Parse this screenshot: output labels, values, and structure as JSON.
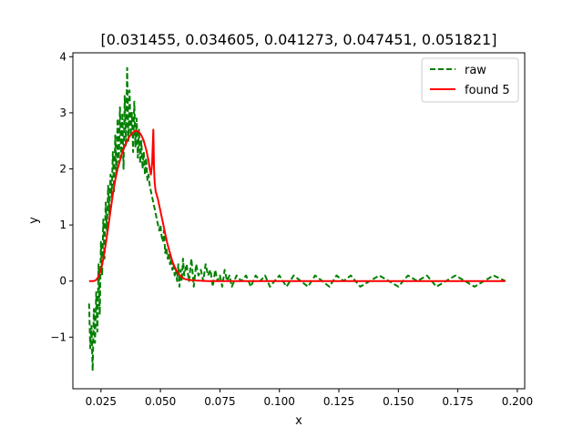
{
  "chart_data": {
    "type": "line",
    "title": "[0.031455, 0.034605, 0.041273, 0.047451, 0.051821]",
    "xlabel": "x",
    "ylabel": "y",
    "xlim": [
      0.0132,
      0.2031
    ],
    "ylim": [
      -1.92,
      4.07
    ],
    "xticks": [
      0.025,
      0.05,
      0.075,
      0.1,
      0.125,
      0.15,
      0.175,
      0.2
    ],
    "xtick_labels": [
      "0.025",
      "0.050",
      "0.075",
      "0.100",
      "0.125",
      "0.150",
      "0.175",
      "0.200"
    ],
    "yticks": [
      -1,
      0,
      1,
      2,
      3,
      4
    ],
    "ytick_labels": [
      "−1",
      "0",
      "1",
      "2",
      "3",
      "4"
    ],
    "grid": false,
    "legend": {
      "position": "top-right",
      "entries": [
        "raw",
        "found 5"
      ]
    },
    "series": [
      {
        "name": "raw",
        "color": "#008000",
        "style": "dashed",
        "x": [
          0.02,
          0.0205,
          0.021,
          0.0215,
          0.022,
          0.0225,
          0.023,
          0.0235,
          0.024,
          0.0245,
          0.025,
          0.0255,
          0.026,
          0.0265,
          0.027,
          0.0275,
          0.028,
          0.0285,
          0.029,
          0.0295,
          0.03,
          0.0305,
          0.031,
          0.0315,
          0.032,
          0.0325,
          0.033,
          0.0335,
          0.034,
          0.0345,
          0.035,
          0.0355,
          0.036,
          0.0365,
          0.037,
          0.0375,
          0.038,
          0.0385,
          0.039,
          0.0395,
          0.04,
          0.0405,
          0.041,
          0.0415,
          0.042,
          0.0425,
          0.043,
          0.0435,
          0.044,
          0.0445,
          0.045,
          0.0455,
          0.046,
          0.0465,
          0.047,
          0.0475,
          0.048,
          0.0485,
          0.049,
          0.0495,
          0.05,
          0.0505,
          0.051,
          0.0515,
          0.052,
          0.0525,
          0.053,
          0.0535,
          0.054,
          0.0545,
          0.055,
          0.0555,
          0.056,
          0.0565,
          0.057,
          0.0575,
          0.058,
          0.0585,
          0.059,
          0.0595,
          0.06,
          0.061,
          0.062,
          0.063,
          0.064,
          0.065,
          0.066,
          0.067,
          0.068,
          0.069,
          0.07,
          0.071,
          0.072,
          0.073,
          0.074,
          0.075,
          0.076,
          0.077,
          0.078,
          0.079,
          0.08,
          0.082,
          0.084,
          0.086,
          0.088,
          0.09,
          0.092,
          0.094,
          0.096,
          0.098,
          0.1,
          0.103,
          0.106,
          0.109,
          0.112,
          0.115,
          0.118,
          0.121,
          0.124,
          0.127,
          0.13,
          0.134,
          0.138,
          0.142,
          0.146,
          0.15,
          0.154,
          0.158,
          0.162,
          0.166,
          0.17,
          0.174,
          0.178,
          0.182,
          0.186,
          0.19,
          0.195
        ],
        "y": [
          -0.4,
          -1.2,
          -0.8,
          -1.6,
          -0.5,
          -1.1,
          -0.2,
          -0.9,
          0.3,
          -0.6,
          0.7,
          0.1,
          1.1,
          0.4,
          1.4,
          0.9,
          1.7,
          1.2,
          1.9,
          1.5,
          2.3,
          1.6,
          2.6,
          1.9,
          2.9,
          2.1,
          3.1,
          2.2,
          3.0,
          2.0,
          3.3,
          2.4,
          3.8,
          2.5,
          3.4,
          2.6,
          3.0,
          2.3,
          3.2,
          2.4,
          2.9,
          2.2,
          2.7,
          2.1,
          2.5,
          2.0,
          2.3,
          1.9,
          2.2,
          1.8,
          1.9,
          1.7,
          1.6,
          1.5,
          1.4,
          1.3,
          1.2,
          1.1,
          1.0,
          0.9,
          1.0,
          0.8,
          0.7,
          0.9,
          0.5,
          0.6,
          0.4,
          0.5,
          0.3,
          0.4,
          0.2,
          0.3,
          0.1,
          0.2,
          0.0,
          0.3,
          -0.1,
          0.2,
          0.0,
          0.4,
          0.1,
          0.3,
          0.0,
          0.4,
          -0.1,
          0.3,
          0.1,
          0.2,
          0.0,
          0.3,
          0.1,
          0.2,
          -0.1,
          0.2,
          0.0,
          0.1,
          -0.1,
          0.2,
          0.0,
          0.1,
          -0.1,
          0.1,
          0.0,
          0.1,
          -0.1,
          0.1,
          0.0,
          0.1,
          -0.1,
          0.0,
          0.1,
          -0.1,
          0.1,
          0.0,
          -0.1,
          0.1,
          0.0,
          -0.1,
          0.1,
          0.0,
          0.1,
          -0.1,
          0.0,
          0.1,
          0.0,
          -0.1,
          0.1,
          0.0,
          0.1,
          -0.1,
          0.0,
          0.1,
          0.0,
          -0.1,
          0.0,
          0.1,
          0.0
        ]
      },
      {
        "name": "found 5",
        "color": "#ff0000",
        "style": "solid",
        "x": [
          0.02,
          0.022,
          0.023,
          0.024,
          0.025,
          0.026,
          0.027,
          0.028,
          0.029,
          0.03,
          0.031,
          0.032,
          0.033,
          0.034,
          0.035,
          0.036,
          0.037,
          0.038,
          0.039,
          0.04,
          0.041,
          0.042,
          0.043,
          0.044,
          0.045,
          0.0455,
          0.046,
          0.0465,
          0.047,
          0.0473,
          0.0476,
          0.048,
          0.049,
          0.05,
          0.051,
          0.052,
          0.053,
          0.054,
          0.055,
          0.056,
          0.057,
          0.058,
          0.059,
          0.06,
          0.062,
          0.065,
          0.07,
          0.08,
          0.1,
          0.125,
          0.15,
          0.175,
          0.195
        ],
        "y": [
          0.0,
          0.0,
          0.02,
          0.08,
          0.2,
          0.4,
          0.65,
          0.95,
          1.25,
          1.55,
          1.8,
          2.0,
          2.15,
          2.3,
          2.4,
          2.5,
          2.58,
          2.63,
          2.67,
          2.68,
          2.66,
          2.6,
          2.5,
          2.35,
          2.15,
          2.0,
          1.9,
          2.1,
          2.7,
          2.0,
          1.75,
          1.6,
          1.45,
          1.25,
          1.05,
          0.85,
          0.65,
          0.5,
          0.35,
          0.25,
          0.17,
          0.11,
          0.07,
          0.04,
          0.02,
          0.01,
          0.0,
          0.0,
          0.0,
          0.0,
          0.0,
          0.0,
          0.0
        ]
      }
    ]
  }
}
